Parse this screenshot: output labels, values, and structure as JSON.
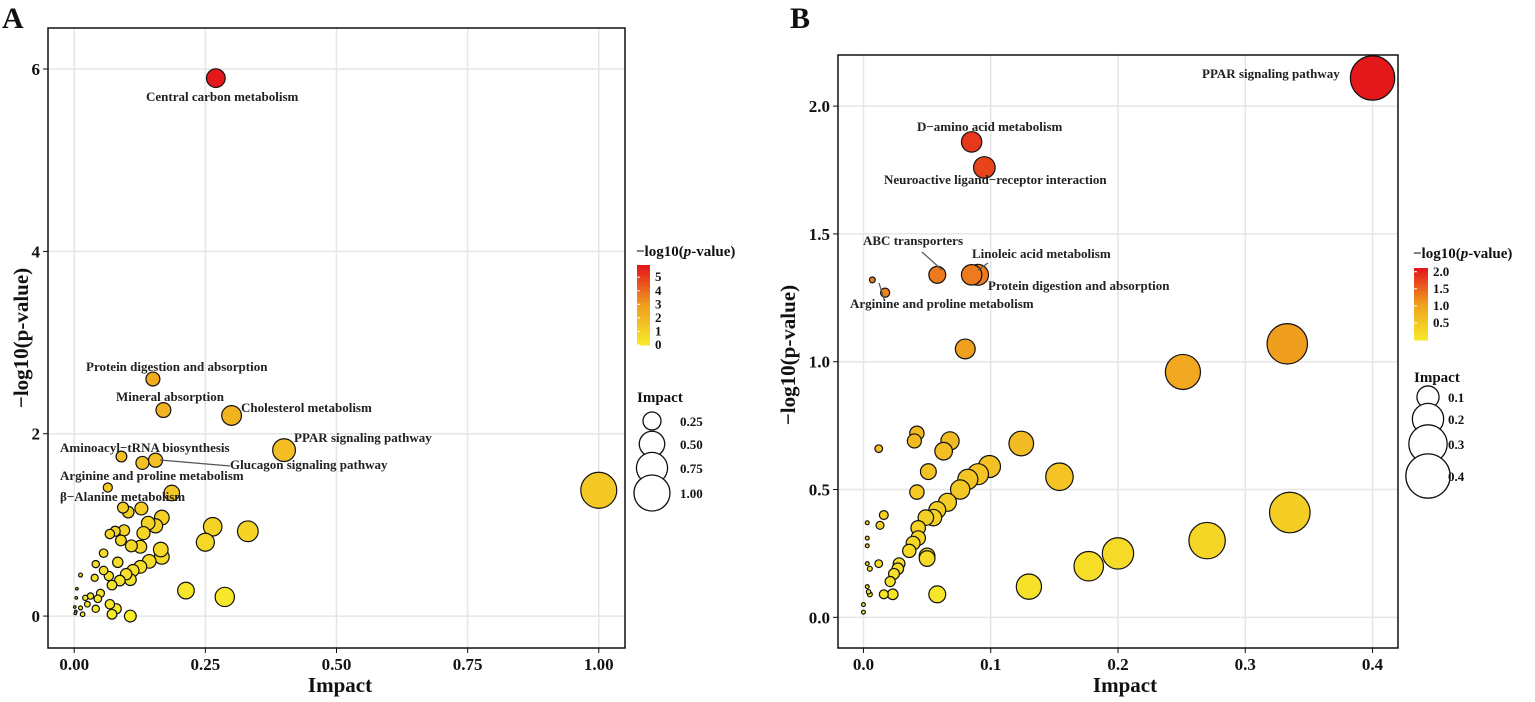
{
  "colors": {
    "low": "#f7ec2a",
    "mid": "#f0a01e",
    "high": "#e4171b",
    "grid": "#e6e6e6"
  },
  "chart_data": [
    {
      "type": "scatter",
      "panel": "A",
      "xlabel": "Impact",
      "ylabel": "−log10(p-value)",
      "xlim": [
        -0.05,
        1.05
      ],
      "ylim": [
        -0.35,
        6.45
      ],
      "xticks": [
        0,
        0.25,
        0.5,
        0.75,
        1.0
      ],
      "xtick_labels": [
        "0.00",
        "0.25",
        "0.50",
        "0.75",
        "1.00"
      ],
      "yticks": [
        0,
        2,
        4,
        6
      ],
      "ytick_labels": [
        "0",
        "2",
        "4",
        "6"
      ],
      "color_legend": {
        "title_prefix": "−log10(",
        "title_italic": "p",
        "title_suffix": "-value)",
        "ticks": [
          0,
          1,
          2,
          3,
          4,
          5
        ],
        "tick_labels": [
          "0",
          "1",
          "2",
          "3",
          "4",
          "5"
        ],
        "range": [
          0,
          5.9
        ]
      },
      "size_legend": {
        "title": "Impact",
        "values": [
          0.25,
          0.5,
          0.75,
          1.0
        ],
        "labels": [
          "0.25",
          "0.50",
          "0.75",
          "1.00"
        ]
      },
      "labeled_points": [
        {
          "name": "Central carbon metabolism",
          "x": 0.27,
          "y": 5.9
        },
        {
          "name": "Protein digestion and absorption",
          "x": 0.15,
          "y": 2.6
        },
        {
          "name": "Mineral absorption",
          "x": 0.17,
          "y": 2.26
        },
        {
          "name": "Cholesterol metabolism",
          "x": 0.3,
          "y": 2.2
        },
        {
          "name": "PPAR signaling pathway",
          "x": 0.4,
          "y": 1.82
        },
        {
          "name": "Aminoacyl−tRNA biosynthesis",
          "x": 0.09,
          "y": 1.75
        },
        {
          "name": "Glucagon signaling pathway",
          "x": 0.155,
          "y": 1.71
        },
        {
          "name": "Arginine and proline metabolism",
          "x": 0.13,
          "y": 1.68
        },
        {
          "name": "β−Alanine metabolism",
          "x": 0.064,
          "y": 1.41
        }
      ],
      "points": [
        [
          1.0,
          1.38
        ],
        [
          0.186,
          1.35
        ],
        [
          0.093,
          1.19
        ],
        [
          0.103,
          1.14
        ],
        [
          0.128,
          1.18
        ],
        [
          0.167,
          1.08
        ],
        [
          0.141,
          1.02
        ],
        [
          0.155,
          0.99
        ],
        [
          0.264,
          0.98
        ],
        [
          0.331,
          0.93
        ],
        [
          0.25,
          0.81
        ],
        [
          0.068,
          0.9
        ],
        [
          0.078,
          0.93
        ],
        [
          0.095,
          0.94
        ],
        [
          0.132,
          0.91
        ],
        [
          0.089,
          0.83
        ],
        [
          0.109,
          0.77
        ],
        [
          0.126,
          0.76
        ],
        [
          0.165,
          0.73
        ],
        [
          0.167,
          0.65
        ],
        [
          0.056,
          0.69
        ],
        [
          0.083,
          0.59
        ],
        [
          0.041,
          0.57
        ],
        [
          0.143,
          0.6
        ],
        [
          0.126,
          0.54
        ],
        [
          0.112,
          0.5
        ],
        [
          0.099,
          0.46
        ],
        [
          0.056,
          0.5
        ],
        [
          0.066,
          0.44
        ],
        [
          0.087,
          0.39
        ],
        [
          0.107,
          0.4
        ],
        [
          0.072,
          0.34
        ],
        [
          0.039,
          0.42
        ],
        [
          0.012,
          0.45
        ],
        [
          0.213,
          0.28
        ],
        [
          0.287,
          0.21
        ],
        [
          0.05,
          0.25
        ],
        [
          0.045,
          0.19
        ],
        [
          0.021,
          0.2
        ],
        [
          0.031,
          0.22
        ],
        [
          0.068,
          0.13
        ],
        [
          0.08,
          0.08
        ],
        [
          0.072,
          0.02
        ],
        [
          0.107,
          0.0
        ],
        [
          0.041,
          0.08
        ],
        [
          0.025,
          0.13
        ],
        [
          0.012,
          0.09
        ],
        [
          0.002,
          0.03
        ],
        [
          0.016,
          0.02
        ],
        [
          0.005,
          0.3
        ],
        [
          0.004,
          0.2
        ],
        [
          0.001,
          0.1
        ],
        [
          0.003,
          0.05
        ]
      ]
    },
    {
      "type": "scatter",
      "panel": "B",
      "xlabel": "Impact",
      "ylabel": "−log10(p-value)",
      "xlim": [
        -0.02,
        0.42
      ],
      "ylim": [
        -0.12,
        2.2
      ],
      "xticks": [
        0,
        0.1,
        0.2,
        0.3,
        0.4
      ],
      "xtick_labels": [
        "0.0",
        "0.1",
        "0.2",
        "0.3",
        "0.4"
      ],
      "yticks": [
        0,
        0.5,
        1.0,
        1.5,
        2.0
      ],
      "ytick_labels": [
        "0.0",
        "0.5",
        "1.0",
        "1.5",
        "2.0"
      ],
      "color_legend": {
        "title_prefix": "−log10(",
        "title_italic": "p",
        "title_suffix": "-value)",
        "ticks": [
          0.5,
          1.0,
          1.5,
          2.0
        ],
        "tick_labels": [
          "0.5",
          "1.0",
          "1.5",
          "2.0"
        ],
        "range": [
          0,
          2.11
        ]
      },
      "size_legend": {
        "title": "Impact",
        "values": [
          0.1,
          0.2,
          0.3,
          0.4
        ],
        "labels": [
          "0.1",
          "0.2",
          "0.3",
          "0.4"
        ]
      },
      "labeled_points": [
        {
          "name": "PPAR signaling pathway",
          "x": 0.4,
          "y": 2.11
        },
        {
          "name": "D−amino acid metabolism",
          "x": 0.085,
          "y": 1.86
        },
        {
          "name": "Neuroactive ligand−receptor interaction",
          "x": 0.095,
          "y": 1.76
        },
        {
          "name": "ABC transporters",
          "x": 0.058,
          "y": 1.34
        },
        {
          "name": "Linoleic acid metabolism",
          "x": 0.09,
          "y": 1.34
        },
        {
          "name": "Protein digestion and absorption",
          "x": 0.085,
          "y": 1.34
        },
        {
          "name": "Arginine and proline metabolism",
          "x": 0.007,
          "y": 1.32
        }
      ],
      "points": [
        [
          0.017,
          1.27
        ],
        [
          0.08,
          1.05
        ],
        [
          0.333,
          1.07
        ],
        [
          0.251,
          0.96
        ],
        [
          0.042,
          0.72
        ],
        [
          0.04,
          0.69
        ],
        [
          0.068,
          0.69
        ],
        [
          0.063,
          0.65
        ],
        [
          0.012,
          0.66
        ],
        [
          0.099,
          0.59
        ],
        [
          0.09,
          0.56
        ],
        [
          0.082,
          0.54
        ],
        [
          0.076,
          0.5
        ],
        [
          0.066,
          0.45
        ],
        [
          0.058,
          0.42
        ],
        [
          0.055,
          0.39
        ],
        [
          0.049,
          0.39
        ],
        [
          0.051,
          0.57
        ],
        [
          0.042,
          0.49
        ],
        [
          0.124,
          0.68
        ],
        [
          0.154,
          0.55
        ],
        [
          0.043,
          0.35
        ],
        [
          0.043,
          0.31
        ],
        [
          0.039,
          0.29
        ],
        [
          0.036,
          0.26
        ],
        [
          0.05,
          0.24
        ],
        [
          0.05,
          0.23
        ],
        [
          0.028,
          0.21
        ],
        [
          0.027,
          0.19
        ],
        [
          0.024,
          0.17
        ],
        [
          0.021,
          0.14
        ],
        [
          0.016,
          0.4
        ],
        [
          0.013,
          0.36
        ],
        [
          0.012,
          0.21
        ],
        [
          0.005,
          0.19
        ],
        [
          0.016,
          0.09
        ],
        [
          0.023,
          0.09
        ],
        [
          0.058,
          0.09
        ],
        [
          0.13,
          0.12
        ],
        [
          0.177,
          0.2
        ],
        [
          0.2,
          0.25
        ],
        [
          0.27,
          0.3
        ],
        [
          0.335,
          0.41
        ],
        [
          0.003,
          0.37
        ],
        [
          0.003,
          0.31
        ],
        [
          0.003,
          0.28
        ],
        [
          0.003,
          0.21
        ],
        [
          0.003,
          0.12
        ],
        [
          0.004,
          0.1
        ],
        [
          0.005,
          0.09
        ],
        [
          0.0,
          0.05
        ],
        [
          0.0,
          0.02
        ]
      ]
    }
  ]
}
